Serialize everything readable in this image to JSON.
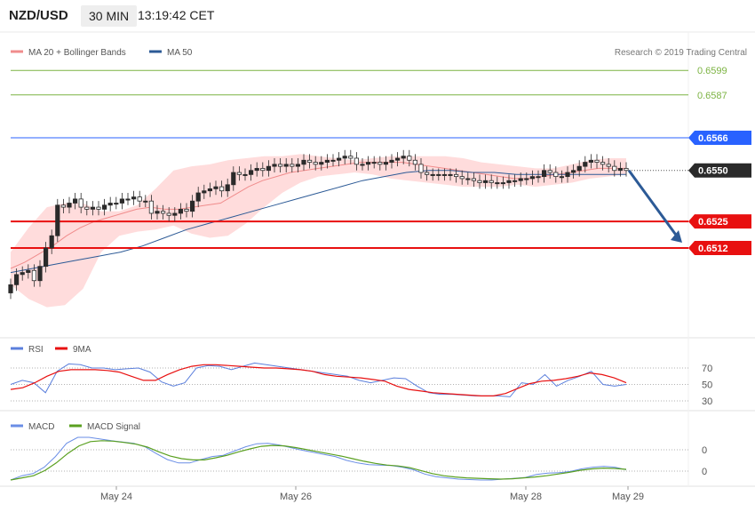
{
  "header": {
    "pair": "NZD/USD",
    "timeframe": "30 MIN",
    "time": "13:19:42 CET"
  },
  "legend_main": {
    "ma20_label": "MA 20 + Bollinger Bands",
    "ma50_label": "MA 50",
    "credit": "Research © 2019 Trading Central"
  },
  "legend_rsi": {
    "rsi_label": "RSI",
    "ma_label": "9MA"
  },
  "legend_macd": {
    "macd_label": "MACD",
    "signal_label": "MACD Signal"
  },
  "colors": {
    "green_level": "#7cb342",
    "blue_level": "#2962ff",
    "red_level": "#e81010",
    "price": "#2a2a2a",
    "bollinger": "#ffd0d0",
    "ma20": "#f08c8c",
    "ma50": "#2c5a96",
    "rsi": "#5b7fdc",
    "rsi_ma": "#e81010",
    "macd": "#6a8ee6",
    "macd_signal": "#5aa020",
    "arrow": "#2c5a96"
  },
  "chart_data": [
    {
      "type": "candlestick",
      "title": "NZD/USD 30 MIN",
      "x_ticks": [
        "May 24",
        "May 26",
        "May 28",
        "May 29"
      ],
      "ylim": [
        0.648,
        0.661
      ],
      "levels": [
        {
          "value": 0.6599,
          "label": "0.6599",
          "kind": "resistance"
        },
        {
          "value": 0.6587,
          "label": "0.6587",
          "kind": "resistance"
        },
        {
          "value": 0.6566,
          "label": "0.6566",
          "kind": "pivot"
        },
        {
          "value": 0.6525,
          "label": "0.6525",
          "kind": "support"
        },
        {
          "value": 0.6512,
          "label": "0.6512",
          "kind": "support"
        }
      ],
      "last_price": {
        "value": 0.655,
        "label": "0.6550"
      },
      "close_series": [
        0.6494,
        0.6499,
        0.65,
        0.6501,
        0.6496,
        0.6503,
        0.6512,
        0.6518,
        0.6533,
        0.6532,
        0.6534,
        0.6536,
        0.6532,
        0.6531,
        0.6532,
        0.6531,
        0.6533,
        0.6534,
        0.6534,
        0.6536,
        0.6536,
        0.6537,
        0.6535,
        0.6535,
        0.6529,
        0.653,
        0.6529,
        0.6528,
        0.6529,
        0.6531,
        0.653,
        0.6535,
        0.6539,
        0.654,
        0.6541,
        0.6542,
        0.654,
        0.6543,
        0.6549,
        0.6548,
        0.6548,
        0.655,
        0.6551,
        0.655,
        0.6552,
        0.6553,
        0.6552,
        0.6553,
        0.6552,
        0.6553,
        0.6555,
        0.6554,
        0.6553,
        0.6554,
        0.6555,
        0.6555,
        0.6556,
        0.6557,
        0.6556,
        0.6553,
        0.6553,
        0.6554,
        0.6554,
        0.6553,
        0.6554,
        0.6555,
        0.6556,
        0.6557,
        0.6555,
        0.6553,
        0.6549,
        0.6548,
        0.6548,
        0.6548,
        0.6548,
        0.6548,
        0.6547,
        0.6546,
        0.6546,
        0.6545,
        0.6544,
        0.6545,
        0.6544,
        0.6544,
        0.6544,
        0.6545,
        0.6545,
        0.6546,
        0.6546,
        0.6547,
        0.6547,
        0.655,
        0.6549,
        0.6547,
        0.6547,
        0.6549,
        0.655,
        0.6552,
        0.6554,
        0.6555,
        0.6554,
        0.6553,
        0.6552,
        0.655,
        0.6551,
        0.655
      ],
      "ma20_series": [
        0.6502,
        0.6505,
        0.6509,
        0.6513,
        0.6518,
        0.6522,
        0.6525,
        0.6527,
        0.6529,
        0.6531,
        0.6532,
        0.6531,
        0.6531,
        0.6532,
        0.6533,
        0.6534,
        0.6538,
        0.6542,
        0.6545,
        0.6547,
        0.6549,
        0.655,
        0.6551,
        0.6552,
        0.6553,
        0.6554,
        0.6554,
        0.6554,
        0.6554,
        0.6553,
        0.6552,
        0.6551,
        0.655,
        0.6549,
        0.6548,
        0.6547,
        0.6546,
        0.6546,
        0.6547,
        0.6548,
        0.6549,
        0.655,
        0.6551,
        0.6551,
        0.6551
      ],
      "ma50_series": [
        0.65,
        0.6502,
        0.6504,
        0.6506,
        0.6508,
        0.651,
        0.6513,
        0.6517,
        0.6521,
        0.6524,
        0.6527,
        0.653,
        0.6533,
        0.6536,
        0.6539,
        0.6542,
        0.6545,
        0.6547,
        0.6549,
        0.655,
        0.655,
        0.6549,
        0.6549,
        0.6548,
        0.6548,
        0.6548,
        0.6548,
        0.6548,
        0.6548
      ],
      "bollinger_upper": [
        0.651,
        0.6522,
        0.6532,
        0.6534,
        0.6534,
        0.653,
        0.653,
        0.6533,
        0.6541,
        0.655,
        0.6552,
        0.6553,
        0.6555,
        0.6556,
        0.6557,
        0.6557,
        0.6558,
        0.6557,
        0.6556,
        0.6555,
        0.6556,
        0.6557,
        0.6557,
        0.6557,
        0.6557,
        0.6556,
        0.6554,
        0.6553,
        0.6552,
        0.6551,
        0.6551,
        0.6553,
        0.6555,
        0.6556,
        0.6556
      ],
      "bollinger_lower": [
        0.6494,
        0.6487,
        0.6483,
        0.6484,
        0.6492,
        0.651,
        0.6518,
        0.652,
        0.6521,
        0.6523,
        0.6519,
        0.6517,
        0.6518,
        0.6524,
        0.6532,
        0.6539,
        0.6544,
        0.6547,
        0.6548,
        0.6549,
        0.6548,
        0.6546,
        0.6545,
        0.6544,
        0.6543,
        0.6542,
        0.6542,
        0.6542,
        0.6543,
        0.6542,
        0.6543,
        0.6544,
        0.6546,
        0.6547,
        0.6548
      ],
      "projection": {
        "from": 0.655,
        "to": 0.6512
      }
    },
    {
      "type": "line",
      "title": "RSI",
      "yticks": [
        70,
        50,
        30
      ],
      "ylim": [
        20,
        90
      ],
      "series": [
        {
          "name": "RSI",
          "values": [
            50,
            55,
            52,
            40,
            66,
            75,
            74,
            70,
            70,
            68,
            69,
            70,
            65,
            53,
            48,
            52,
            70,
            73,
            72,
            68,
            72,
            76,
            74,
            72,
            70,
            68,
            66,
            64,
            62,
            60,
            55,
            52,
            55,
            58,
            57,
            48,
            40,
            38,
            38,
            37,
            36,
            36,
            36,
            35,
            52,
            50,
            62,
            48,
            55,
            60,
            66,
            50,
            48,
            50
          ]
        },
        {
          "name": "9MA",
          "values": [
            44,
            46,
            52,
            60,
            66,
            68,
            68,
            68,
            67,
            65,
            60,
            55,
            55,
            62,
            68,
            72,
            74,
            74,
            73,
            72,
            71,
            70,
            70,
            69,
            68,
            66,
            62,
            60,
            59,
            58,
            56,
            54,
            48,
            44,
            42,
            40,
            39,
            38,
            37,
            36,
            36,
            39,
            45,
            51,
            54,
            55,
            57,
            60,
            64,
            62,
            58,
            52
          ]
        }
      ]
    },
    {
      "type": "line",
      "title": "MACD",
      "yticks": [
        "0",
        "0"
      ],
      "series": [
        {
          "name": "MACD",
          "values": [
            0.0,
            0.1,
            0.15,
            0.3,
            0.55,
            0.86,
            1.0,
            1.0,
            0.96,
            0.92,
            0.89,
            0.86,
            0.78,
            0.62,
            0.48,
            0.4,
            0.4,
            0.48,
            0.55,
            0.58,
            0.68,
            0.78,
            0.85,
            0.86,
            0.82,
            0.76,
            0.7,
            0.65,
            0.6,
            0.55,
            0.46,
            0.4,
            0.36,
            0.35,
            0.34,
            0.3,
            0.24,
            0.14,
            0.08,
            0.05,
            0.02,
            0.01,
            0.0,
            0.0,
            0.02,
            0.04,
            0.06,
            0.13,
            0.16,
            0.17,
            0.2,
            0.26,
            0.3,
            0.32,
            0.3,
            0.24
          ]
        },
        {
          "name": "MACD Signal",
          "values": [
            0.0,
            0.05,
            0.1,
            0.22,
            0.4,
            0.62,
            0.8,
            0.9,
            0.92,
            0.91,
            0.88,
            0.84,
            0.77,
            0.66,
            0.56,
            0.5,
            0.47,
            0.47,
            0.52,
            0.58,
            0.66,
            0.73,
            0.79,
            0.81,
            0.8,
            0.76,
            0.71,
            0.66,
            0.61,
            0.56,
            0.5,
            0.44,
            0.39,
            0.35,
            0.33,
            0.29,
            0.22,
            0.15,
            0.1,
            0.07,
            0.05,
            0.04,
            0.03,
            0.02,
            0.03,
            0.05,
            0.07,
            0.1,
            0.14,
            0.18,
            0.23,
            0.26,
            0.28,
            0.27,
            0.25
          ]
        }
      ]
    }
  ]
}
